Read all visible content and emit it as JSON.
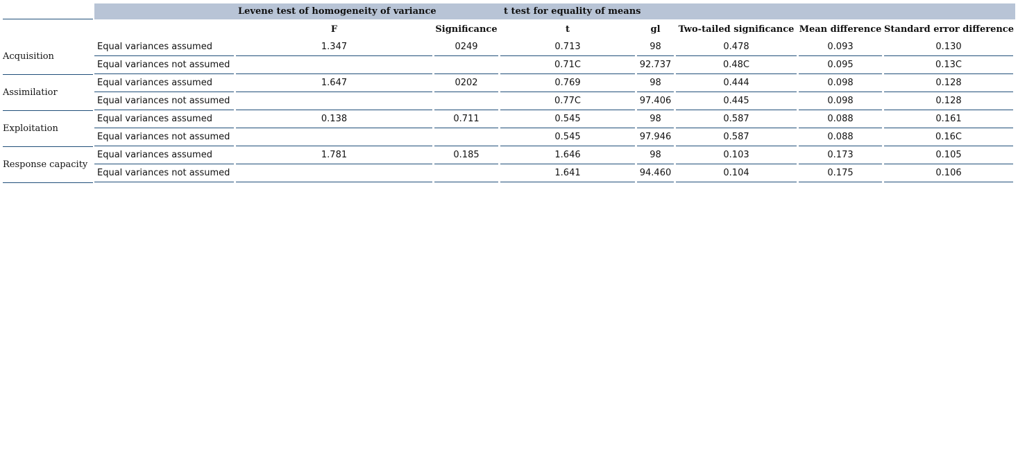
{
  "header": {
    "levene_title": "Levene test of homogeneity of variance",
    "ttest_title": "t test for equality of means"
  },
  "columns": [
    "F",
    "Significance",
    "t",
    "gl",
    "Two-tailed significance",
    "Mean difference",
    "Standard error difference"
  ],
  "groups": [
    {
      "name": "Acquisition",
      "rows": [
        {
          "label": "Equal variances assumed",
          "F": "1.347",
          "sig": "0249",
          "t": "0.713",
          "gl": "98",
          "two_tailed": "0.478",
          "mean_diff": "0.093",
          "se_diff": "0.130"
        },
        {
          "label": "Equal variances not assumed",
          "F": "",
          "sig": "",
          "t": "0.71C",
          "gl": "92.737",
          "two_tailed": "0.48C",
          "mean_diff": "0.095",
          "se_diff": "0.13C"
        }
      ]
    },
    {
      "name": "Assimilatior",
      "rows": [
        {
          "label": "Equal variances assumed",
          "F": "1.647",
          "sig": "0202",
          "t": "0.769",
          "gl": "98",
          "two_tailed": "0.444",
          "mean_diff": "0.098",
          "se_diff": "0.128"
        },
        {
          "label": "Equal variances not assumed",
          "F": "",
          "sig": "",
          "t": "0.77C",
          "gl": "97.406",
          "two_tailed": "0.445",
          "mean_diff": "0.098",
          "se_diff": "0.128"
        }
      ]
    },
    {
      "name": "Exploitation",
      "rows": [
        {
          "label": "Equal variances assumed",
          "F": "0.138",
          "sig": "0.711",
          "t": "0.545",
          "gl": "98",
          "two_tailed": "0.587",
          "mean_diff": "0.088",
          "se_diff": "0.161"
        },
        {
          "label": "Equal variances not assumed",
          "F": "",
          "sig": "",
          "t": "0.545",
          "gl": "97.946",
          "two_tailed": "0.587",
          "mean_diff": "0.088",
          "se_diff": "0.16C"
        }
      ]
    },
    {
      "name": "Response capacity",
      "rows": [
        {
          "label": "Equal variances assumed",
          "F": "1.781",
          "sig": "0.185",
          "t": "1.646",
          "gl": "98",
          "two_tailed": "0.103",
          "mean_diff": "0.173",
          "se_diff": "0.105"
        },
        {
          "label": "Equal variances not assumed",
          "F": "",
          "sig": "",
          "t": "1.641",
          "gl": "94.460",
          "two_tailed": "0.104",
          "mean_diff": "0.175",
          "se_diff": "0.106"
        }
      ]
    }
  ],
  "colors": {
    "header_band": "#b8c4d6",
    "rule": "#1f4e79"
  }
}
